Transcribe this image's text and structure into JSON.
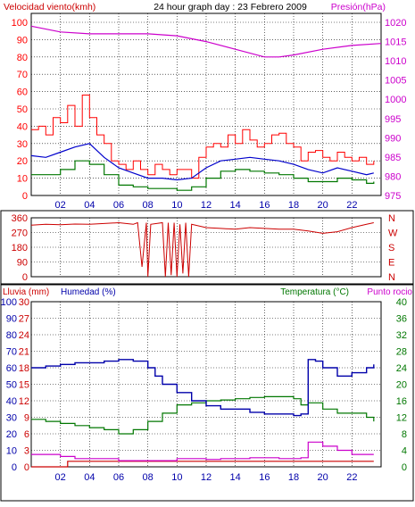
{
  "header": {
    "wind_title": "Velocidad viento(kmh)",
    "chart_title": "24 hour graph day : 23 Febrero 2009",
    "pressure_title": "Presión(hPa)"
  },
  "colors": {
    "wind": "#ff0000",
    "avg": "#0000cc",
    "low": "#007700",
    "pressure": "#cc00cc",
    "direction": "#cc0000",
    "rain": "#cc0000",
    "humidity": "#0000aa",
    "temperature": "#007700",
    "dewpoint": "#cc00cc",
    "grid": "#000000"
  },
  "chart_data": [
    {
      "type": "line",
      "x_ticks": [
        "02",
        "04",
        "06",
        "08",
        "10",
        "12",
        "14",
        "16",
        "18",
        "20",
        "22"
      ],
      "left_axis_ticks": [
        "0",
        "10",
        "20",
        "30",
        "40",
        "50",
        "60",
        "70",
        "80",
        "90",
        "100"
      ],
      "right_axis_ticks": [
        "975",
        "980",
        "985",
        "990",
        "995",
        "1000",
        "1005",
        "1010",
        "1015",
        "1020"
      ],
      "left_ylim": [
        0,
        100
      ],
      "right_ylim": [
        975,
        1020
      ],
      "xlim": [
        0,
        24
      ],
      "grid": true,
      "pressure": {
        "x": [
          0,
          2,
          4,
          6,
          8,
          10,
          12,
          14,
          16,
          17,
          18,
          20,
          22,
          24
        ],
        "y": [
          1019,
          1017.5,
          1017,
          1017,
          1017,
          1016.5,
          1015,
          1013,
          1011,
          1011,
          1011.5,
          1013,
          1014,
          1014.5
        ]
      },
      "wind_gust": {
        "x": [
          0,
          0.5,
          1,
          1.5,
          2,
          2.5,
          3,
          3.5,
          4,
          4.5,
          5,
          5.5,
          6,
          6.5,
          7,
          7.5,
          8,
          8.5,
          9,
          9.5,
          10,
          10.5,
          11,
          11.5,
          12,
          12.5,
          13,
          13.5,
          14,
          14.5,
          15,
          15.5,
          16,
          16.5,
          17,
          17.5,
          18,
          18.5,
          19,
          19.5,
          20,
          20.5,
          21,
          21.5,
          22,
          22.5,
          23,
          23.5
        ],
        "y": [
          38,
          40,
          35,
          45,
          42,
          52,
          40,
          58,
          45,
          35,
          30,
          20,
          18,
          15,
          20,
          15,
          12,
          18,
          15,
          12,
          15,
          15,
          10,
          22,
          28,
          30,
          28,
          35,
          30,
          38,
          32,
          28,
          30,
          35,
          36,
          30,
          28,
          20,
          25,
          26,
          22,
          20,
          25,
          22,
          20,
          22,
          18,
          20
        ]
      },
      "wind_avg": {
        "x": [
          0,
          1,
          2,
          3,
          4,
          5,
          6,
          7,
          8,
          9,
          10,
          11,
          12,
          13,
          14,
          15,
          16,
          17,
          18,
          19,
          20,
          21,
          22,
          23,
          23.5
        ],
        "y": [
          23,
          22,
          25,
          28,
          30,
          22,
          16,
          13,
          10,
          10,
          9,
          10,
          16,
          20,
          21,
          22,
          21,
          20,
          18,
          15,
          13,
          16,
          14,
          12,
          13
        ]
      },
      "wind_low": {
        "x": [
          0,
          1,
          2,
          3,
          4,
          5,
          6,
          7,
          8,
          9,
          10,
          11,
          12,
          13,
          14,
          15,
          16,
          17,
          18,
          19,
          20,
          21,
          22,
          23,
          23.5
        ],
        "y": [
          12,
          12,
          15,
          20,
          18,
          12,
          6,
          5,
          4,
          4,
          3,
          5,
          10,
          14,
          15,
          14,
          13,
          12,
          10,
          8,
          8,
          10,
          9,
          7,
          8
        ]
      }
    },
    {
      "type": "scatter",
      "x_ticks": [],
      "left_axis_ticks": [
        "0",
        "90",
        "180",
        "270",
        "360"
      ],
      "right_axis_ticks": [
        "N",
        "E",
        "S",
        "W",
        "N"
      ],
      "ylim": [
        0,
        360
      ],
      "xlim": [
        0,
        24
      ],
      "grid": true,
      "direction": {
        "x": [
          0,
          1,
          2,
          3,
          4,
          5,
          6,
          7,
          7.3,
          7.6,
          7.9,
          8,
          8.2,
          9,
          9.2,
          9.4,
          9.6,
          9.8,
          10,
          10.2,
          10.4,
          10.6,
          10.8,
          11,
          12,
          13,
          14,
          15,
          16,
          17,
          18,
          19,
          20,
          21,
          22,
          23,
          23.5
        ],
        "y": [
          315,
          320,
          318,
          322,
          320,
          325,
          330,
          320,
          330,
          60,
          330,
          0,
          320,
          330,
          0,
          330,
          10,
          330,
          0,
          320,
          20,
          330,
          0,
          320,
          300,
          295,
          290,
          300,
          295,
          290,
          290,
          280,
          265,
          275,
          300,
          320,
          330
        ]
      }
    },
    {
      "type": "line",
      "x_ticks": [
        "02",
        "04",
        "06",
        "08",
        "10",
        "12",
        "14",
        "16",
        "18",
        "20",
        "22"
      ],
      "left_axis_ticks": [
        "0",
        "10",
        "20",
        "30",
        "40",
        "50",
        "60",
        "70",
        "80",
        "90",
        "100"
      ],
      "rain_axis_ticks": [
        "0",
        "3",
        "6",
        "9",
        "12",
        "15",
        "18",
        "21",
        "24",
        "27",
        "30"
      ],
      "right_axis_ticks": [
        "0",
        "4",
        "8",
        "12",
        "16",
        "20",
        "24",
        "28",
        "32",
        "36",
        "40"
      ],
      "left_titles": [
        "Lluvia (mm)",
        "Humedad (%)"
      ],
      "right_titles": [
        "Temperatura (°C)",
        "Punto rocio"
      ],
      "humidity_ylim": [
        0,
        100
      ],
      "rain_ylim": [
        0,
        30
      ],
      "temp_ylim": [
        0,
        40
      ],
      "xlim": [
        0,
        24
      ],
      "grid": true,
      "humidity": {
        "x": [
          0,
          1,
          2,
          3,
          4,
          5,
          6,
          7,
          8,
          8.5,
          9,
          10,
          11,
          12,
          13,
          14,
          15,
          16,
          17,
          18,
          18.5,
          19,
          19.5,
          20,
          21,
          22,
          23,
          23.5
        ],
        "y": [
          60,
          61,
          62,
          63,
          63,
          64,
          65,
          64,
          60,
          55,
          50,
          45,
          40,
          37,
          35,
          35,
          33,
          32,
          32,
          31,
          32,
          65,
          64,
          60,
          55,
          57,
          60,
          62
        ]
      },
      "temperature": {
        "x": [
          0,
          1,
          2,
          3,
          4,
          5,
          6,
          7,
          8,
          9,
          10,
          11,
          12,
          13,
          14,
          15,
          16,
          17,
          18,
          18.5,
          19,
          20,
          21,
          22,
          23,
          23.5
        ],
        "y": [
          11.5,
          11,
          10.5,
          10,
          9.5,
          9,
          8,
          9,
          11,
          13,
          15,
          15.5,
          16,
          16.2,
          16.5,
          16.8,
          17,
          17,
          16.5,
          15,
          15.5,
          14,
          13,
          13,
          12,
          11
        ]
      },
      "dewpoint": {
        "x": [
          0,
          1,
          2,
          3,
          4,
          5,
          6,
          7,
          8,
          9,
          10,
          11,
          12,
          13,
          14,
          15,
          16,
          17,
          18,
          18.5,
          19,
          20,
          21,
          22,
          23,
          23.5
        ],
        "y": [
          3,
          3,
          2.5,
          2,
          2,
          2,
          1.5,
          1.5,
          1.5,
          1.5,
          2,
          2,
          1.8,
          2,
          2,
          2.2,
          2.2,
          2,
          2,
          2.2,
          6,
          5,
          4,
          3,
          3,
          3
        ]
      },
      "rain": {
        "x": [
          0,
          2,
          2.5,
          2.5,
          3,
          4,
          6,
          8,
          10,
          12,
          14,
          16,
          18,
          20,
          22,
          23.5
        ],
        "y": [
          0,
          0,
          0,
          1,
          1,
          1,
          1,
          1,
          1,
          1,
          1,
          1,
          1,
          1,
          1,
          1
        ]
      }
    }
  ]
}
